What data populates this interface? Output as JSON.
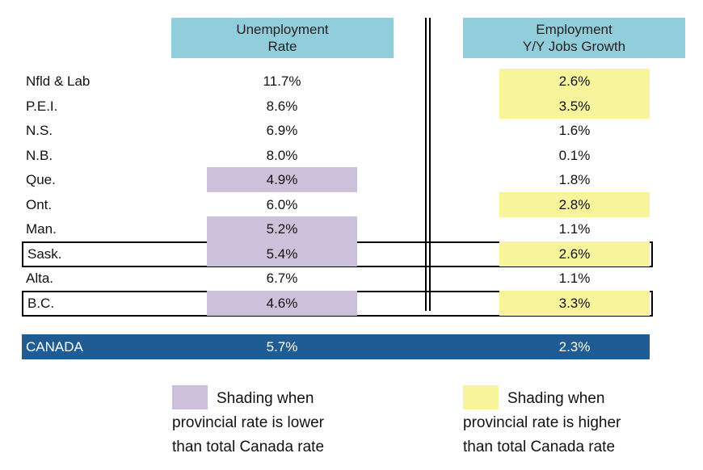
{
  "headers": {
    "unemployment": [
      "Unemployment",
      "Rate"
    ],
    "employment": [
      "Employment",
      "Y/Y Jobs Growth"
    ]
  },
  "rows": [
    {
      "province": "Nfld & Lab",
      "unemployment": "11.7%",
      "employment": "2.6%",
      "unemp_shade": "none",
      "emp_shade": "yellow",
      "outlined": false
    },
    {
      "province": "P.E.I.",
      "unemployment": "8.6%",
      "employment": "3.5%",
      "unemp_shade": "none",
      "emp_shade": "yellow",
      "outlined": false
    },
    {
      "province": "N.S.",
      "unemployment": "6.9%",
      "employment": "1.6%",
      "unemp_shade": "none",
      "emp_shade": "none",
      "outlined": false
    },
    {
      "province": "N.B.",
      "unemployment": "8.0%",
      "employment": "0.1%",
      "unemp_shade": "none",
      "emp_shade": "none",
      "outlined": false
    },
    {
      "province": "Que.",
      "unemployment": "4.9%",
      "employment": "1.8%",
      "unemp_shade": "purple",
      "emp_shade": "none",
      "outlined": false
    },
    {
      "province": "Ont.",
      "unemployment": "6.0%",
      "employment": "2.8%",
      "unemp_shade": "none",
      "emp_shade": "yellow",
      "outlined": false
    },
    {
      "province": "Man.",
      "unemployment": "5.2%",
      "employment": "1.1%",
      "unemp_shade": "purple",
      "emp_shade": "none",
      "outlined": false
    },
    {
      "province": "Sask.",
      "unemployment": "5.4%",
      "employment": "2.6%",
      "unemp_shade": "purple",
      "emp_shade": "yellow",
      "outlined": true
    },
    {
      "province": "Alta.",
      "unemployment": "6.7%",
      "employment": "1.1%",
      "unemp_shade": "none",
      "emp_shade": "none",
      "outlined": false
    },
    {
      "province": "B.C.",
      "unemployment": "4.6%",
      "employment": "3.3%",
      "unemp_shade": "purple",
      "emp_shade": "yellow",
      "outlined": true
    }
  ],
  "canada": {
    "label": "CANADA",
    "unemployment": "5.7%",
    "employment": "2.3%"
  },
  "legend": {
    "lower": [
      "Shading when",
      "provincial rate is lower",
      "than total Canada rate"
    ],
    "higher": [
      "Shading when",
      "provincial rate is higher",
      "than total Canada rate"
    ]
  },
  "colors": {
    "header": "#92cddc",
    "purple_shade": "#ccc0da",
    "yellow_shade": "#f7f49b",
    "canada_bar": "#1f5c93"
  }
}
